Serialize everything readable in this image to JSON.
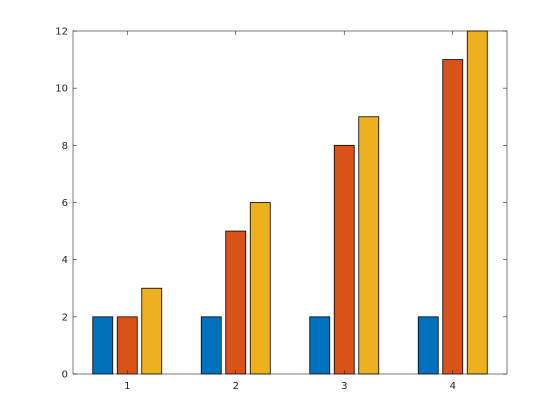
{
  "chart_data": {
    "type": "bar",
    "categories": [
      "1",
      "2",
      "3",
      "4"
    ],
    "series": [
      {
        "values": [
          2,
          2,
          2,
          2
        ],
        "color": "#0072BD"
      },
      {
        "values": [
          2,
          5,
          8,
          11
        ],
        "color": "#D95319"
      },
      {
        "values": [
          3,
          6,
          9,
          12
        ],
        "color": "#EDB120"
      }
    ],
    "y_ticks": [
      "0",
      "2",
      "4",
      "6",
      "8",
      "10",
      "12"
    ],
    "ylim": [
      0,
      12
    ],
    "title": "",
    "xlabel": "",
    "ylabel": "",
    "grid": false,
    "box": true
  }
}
